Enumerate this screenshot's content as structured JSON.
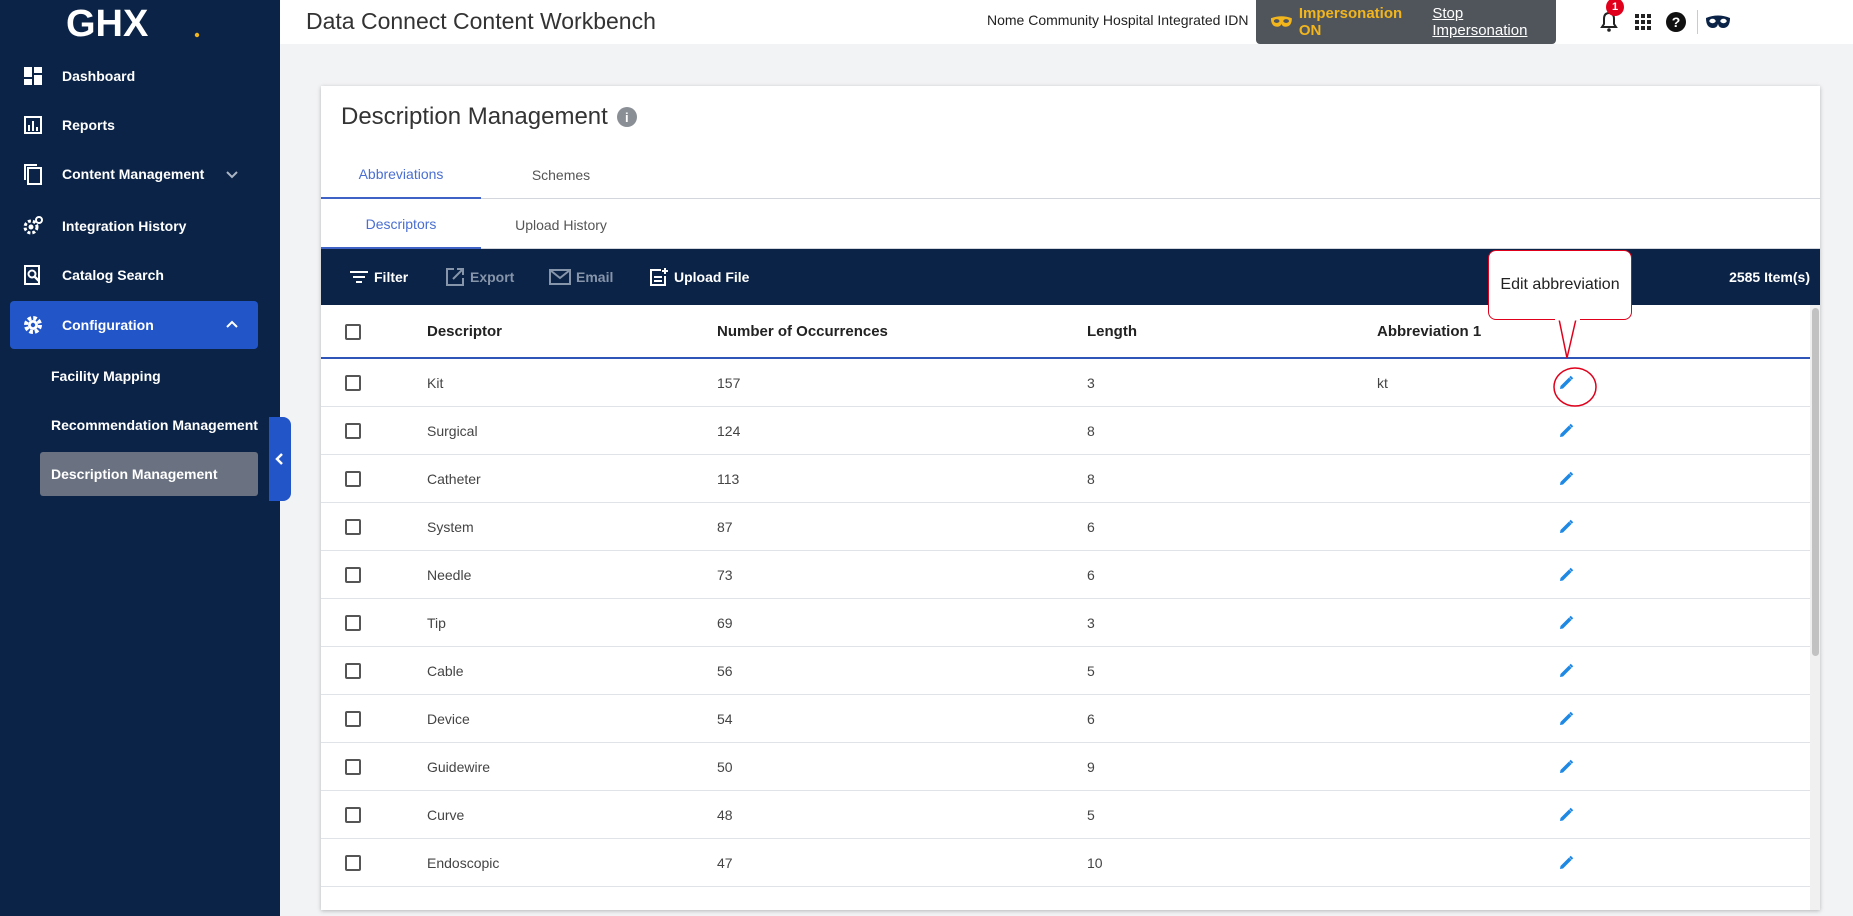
{
  "brand": {
    "logo_text": "GHX"
  },
  "sidebar": {
    "items": [
      {
        "label": "Dashboard",
        "icon": "dashboard-icon"
      },
      {
        "label": "Reports",
        "icon": "reports-icon"
      },
      {
        "label": "Content Management",
        "icon": "copy-icon"
      },
      {
        "label": "Integration History",
        "icon": "gear-history-icon"
      },
      {
        "label": "Catalog Search",
        "icon": "search-doc-icon"
      },
      {
        "label": "Configuration",
        "icon": "gear-icon"
      }
    ],
    "sub_items": [
      {
        "label": "Facility Mapping"
      },
      {
        "label": "Recommendation Management"
      },
      {
        "label": "Description Management"
      }
    ]
  },
  "header": {
    "title": "Data Connect Content Workbench",
    "organization": "Nome Community Hospital Integrated IDN",
    "impersonation_status": "Impersonation ON",
    "stop_impersonation": "Stop Impersonation",
    "notification_count": "1"
  },
  "page": {
    "title": "Description Management",
    "tabs": [
      {
        "label": "Abbreviations"
      },
      {
        "label": "Schemes"
      }
    ],
    "subtabs": [
      {
        "label": "Descriptors"
      },
      {
        "label": "Upload History"
      }
    ]
  },
  "toolbar": {
    "filter": "Filter",
    "export": "Export",
    "email": "Email",
    "upload": "Upload File",
    "item_count": "2585 Item(s)"
  },
  "table": {
    "columns": [
      "Descriptor",
      "Number of Occurrences",
      "Length",
      "Abbreviation 1"
    ],
    "rows": [
      {
        "descriptor": "Kit",
        "occurrences": "157",
        "length": "3",
        "abbreviation": "kt"
      },
      {
        "descriptor": "Surgical",
        "occurrences": "124",
        "length": "8",
        "abbreviation": ""
      },
      {
        "descriptor": "Catheter",
        "occurrences": "113",
        "length": "8",
        "abbreviation": ""
      },
      {
        "descriptor": "System",
        "occurrences": "87",
        "length": "6",
        "abbreviation": ""
      },
      {
        "descriptor": "Needle",
        "occurrences": "73",
        "length": "6",
        "abbreviation": ""
      },
      {
        "descriptor": "Tip",
        "occurrences": "69",
        "length": "3",
        "abbreviation": ""
      },
      {
        "descriptor": "Cable",
        "occurrences": "56",
        "length": "5",
        "abbreviation": ""
      },
      {
        "descriptor": "Device",
        "occurrences": "54",
        "length": "6",
        "abbreviation": ""
      },
      {
        "descriptor": "Guidewire",
        "occurrences": "50",
        "length": "9",
        "abbreviation": ""
      },
      {
        "descriptor": "Curve",
        "occurrences": "48",
        "length": "5",
        "abbreviation": ""
      },
      {
        "descriptor": "Endoscopic",
        "occurrences": "47",
        "length": "10",
        "abbreviation": ""
      }
    ]
  },
  "annotation": {
    "tooltip": "Edit abbreviation"
  },
  "colors": {
    "sidebar_bg": "#0b2347",
    "accent": "#2255c8",
    "impersonation": "#f2b51c",
    "edit_icon": "#1e88e5",
    "annotation": "#e0001b"
  }
}
